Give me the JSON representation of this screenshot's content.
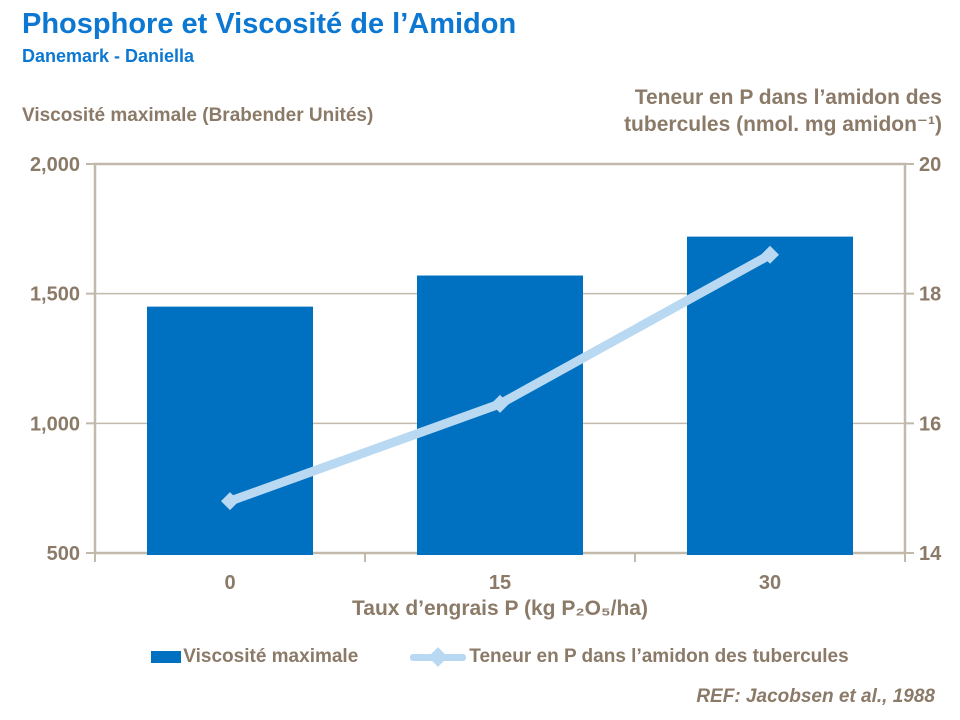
{
  "page": {
    "title": "Phosphore et Viscosité de l’Amidon",
    "subtitle": "Danemark - Daniella",
    "reference": "REF: Jacobsen et al., 1988"
  },
  "colors": {
    "heading_blue": "#0c78d2",
    "bar_blue": "#0071c0",
    "line_blue": "#b9d9f3",
    "axis_line": "#c3b9ab",
    "axis_text": "#8b7a68"
  },
  "chart_data": {
    "type": "bar",
    "title": "Phosphore et Viscosité de l’Amidon",
    "subtitle": "Danemark - Daniella",
    "categories": [
      "0",
      "15",
      "30"
    ],
    "xlabel": "Taux d’engrais P (kg P₂O₅/ha)",
    "grid": true,
    "legend_position": "bottom",
    "left_axis": {
      "label": "Viscosité maximale (Brabender Unités)",
      "min": 500,
      "max": 2000,
      "ticks": [
        {
          "value": 500,
          "label": "500"
        },
        {
          "value": 1000,
          "label": "1,000"
        },
        {
          "value": 1500,
          "label": "1,500"
        },
        {
          "value": 2000,
          "label": "2,000"
        }
      ]
    },
    "right_axis": {
      "label_line1": "Teneur en P dans l’amidon des",
      "label_line2": "tubercules (nmol. mg amidon⁻¹)",
      "min": 14,
      "max": 20,
      "ticks": [
        {
          "value": 14,
          "label": "14"
        },
        {
          "value": 16,
          "label": "16"
        },
        {
          "value": 18,
          "label": "18"
        },
        {
          "value": 20,
          "label": "20"
        }
      ]
    },
    "series": [
      {
        "name": "Viscosité maximale",
        "type": "bar",
        "axis": "left",
        "color": "#0071c0",
        "values": [
          1450,
          1570,
          1720
        ]
      },
      {
        "name": "Teneur en P dans l’amidon des tubercules",
        "type": "line",
        "axis": "right",
        "color": "#b9d9f3",
        "values": [
          14.8,
          16.3,
          18.6
        ]
      }
    ]
  }
}
